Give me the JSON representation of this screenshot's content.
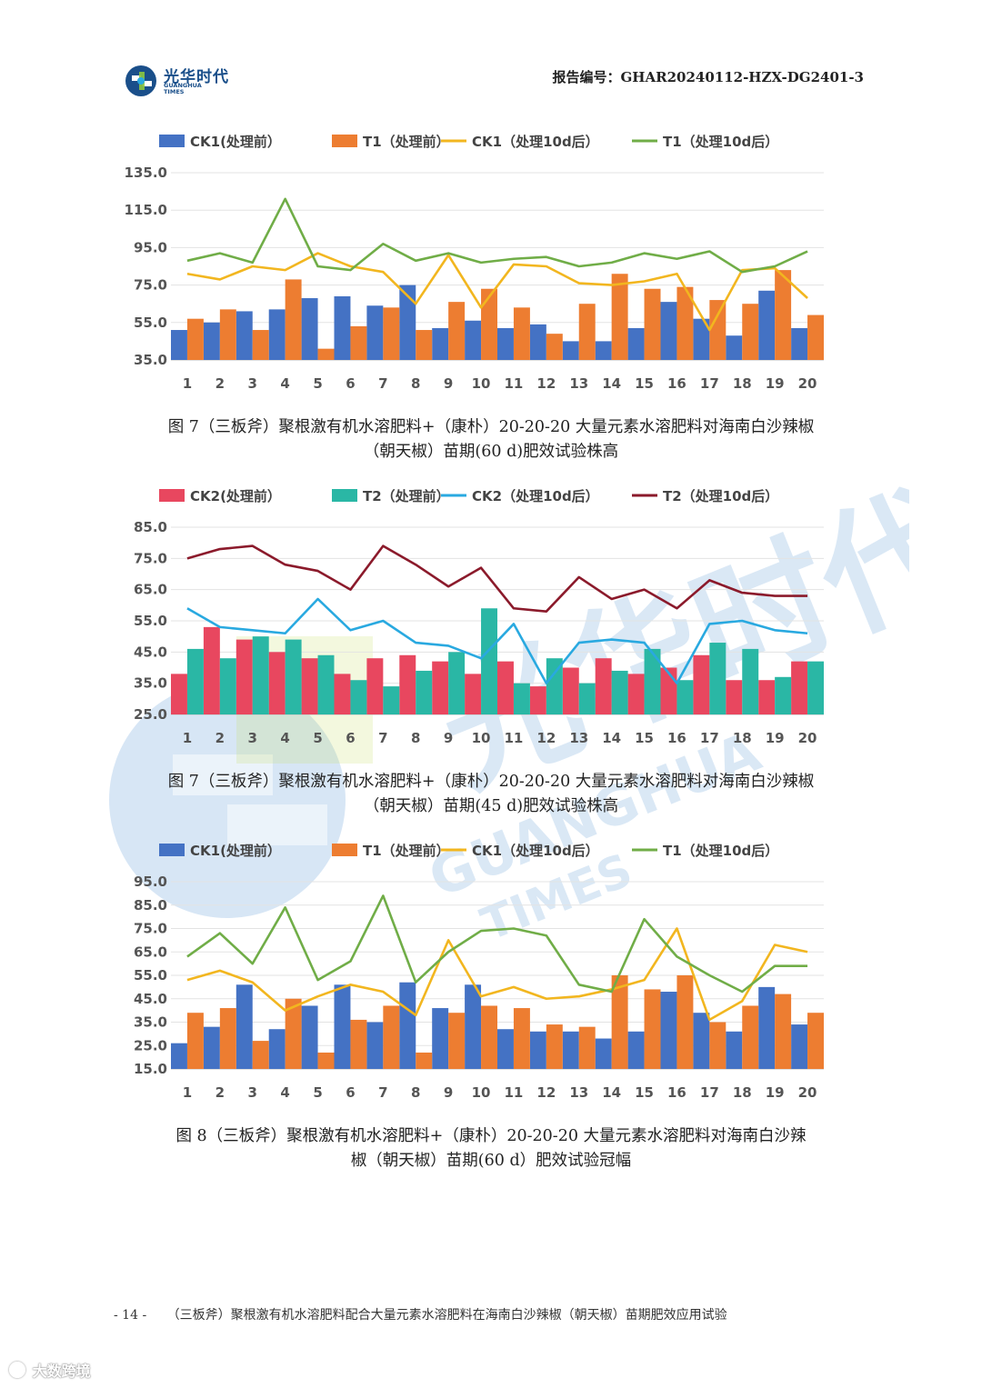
{
  "header": {
    "logo_cn": "光华时代",
    "logo_en_1": "GUANGHUA",
    "logo_en_2": "TIMES",
    "report_no": "报告编号：GHAR20240112-HZX-DG2401-3"
  },
  "watermark": {
    "text_cn": "光华时代",
    "text_en_1": "GUANGHUA",
    "text_en_2": "TIMES"
  },
  "captions": {
    "c1_line1": "图 7（三板斧）聚根激有机水溶肥料+（康朴）20-20-20 大量元素水溶肥料对海南白沙辣椒",
    "c1_line2": "（朝天椒）苗期(60 d)肥效试验株高",
    "c2_line1": "图 7（三板斧）聚根激有机水溶肥料+（康朴）20-20-20 大量元素水溶肥料对海南白沙辣椒",
    "c2_line2": "（朝天椒）苗期(45 d)肥效试验株高",
    "c3_line1": "图 8（三板斧）聚根激有机水溶肥料+（康朴）20-20-20 大量元素水溶肥料对海南白沙辣",
    "c3_line2": "椒（朝天椒）苗期(60 d）肥效试验冠幅"
  },
  "footer": {
    "page": "- 14 -",
    "title": "（三板斧）聚根激有机水溶肥料配合大量元素水溶肥料在海南白沙辣椒（朝天椒）苗期肥效应用试验"
  },
  "corner_brand": "大数跨境",
  "chart_data": [
    {
      "type": "bar",
      "categories": [
        "1",
        "2",
        "3",
        "4",
        "5",
        "6",
        "7",
        "8",
        "9",
        "10",
        "11",
        "12",
        "13",
        "14",
        "15",
        "16",
        "17",
        "18",
        "19",
        "20"
      ],
      "ylim": [
        35,
        135
      ],
      "yticks": [
        "35.0",
        "55.0",
        "75.0",
        "95.0",
        "115.0",
        "135.0"
      ],
      "grid": true,
      "legend_position": "top",
      "series": [
        {
          "name": "CK1(处理前）",
          "kind": "bar",
          "color": "#4472c4",
          "values": [
            51,
            55,
            61,
            62,
            68,
            69,
            64,
            75,
            52,
            56,
            52,
            54,
            45,
            45,
            52,
            66,
            57,
            48,
            72,
            52
          ]
        },
        {
          "name": "T1（处理前）",
          "kind": "bar",
          "color": "#ed7d31",
          "values": [
            57,
            62,
            51,
            78,
            41,
            53,
            63,
            51,
            66,
            73,
            63,
            49,
            65,
            81,
            73,
            74,
            67,
            65,
            83,
            59
          ]
        },
        {
          "name": "CK1（处理10d后）",
          "kind": "line",
          "color": "#f2b61f",
          "values": [
            81,
            78,
            85,
            83,
            92,
            85,
            82,
            65,
            91,
            63,
            86,
            85,
            76,
            75,
            77,
            81,
            51,
            83,
            84,
            68
          ]
        },
        {
          "name": "T1（处理10d后）",
          "kind": "line",
          "color": "#70ad47",
          "values": [
            88,
            92,
            87,
            121,
            85,
            83,
            97,
            88,
            92,
            87,
            89,
            90,
            85,
            87,
            92,
            89,
            93,
            82,
            85,
            93
          ]
        }
      ]
    },
    {
      "type": "bar",
      "categories": [
        "1",
        "2",
        "3",
        "4",
        "5",
        "6",
        "7",
        "8",
        "9",
        "10",
        "11",
        "12",
        "13",
        "14",
        "15",
        "16",
        "17",
        "18",
        "19",
        "20"
      ],
      "ylim": [
        25,
        85
      ],
      "yticks": [
        "25.0",
        "35.0",
        "45.0",
        "55.0",
        "65.0",
        "75.0",
        "85.0"
      ],
      "grid": true,
      "legend_position": "top",
      "series": [
        {
          "name": "CK2(处理前）",
          "kind": "bar",
          "color": "#e8475f",
          "values": [
            38,
            53,
            49,
            45,
            43,
            38,
            43,
            44,
            42,
            38,
            42,
            34,
            40,
            43,
            38,
            40,
            44,
            36,
            36,
            42
          ]
        },
        {
          "name": "T2（处理前）",
          "kind": "bar",
          "color": "#2ab7a5",
          "values": [
            46,
            43,
            50,
            49,
            44,
            36,
            34,
            39,
            45,
            59,
            35,
            43,
            35,
            39,
            46,
            36,
            48,
            46,
            37,
            42
          ]
        },
        {
          "name": "CK2（处理10d后）",
          "kind": "line",
          "color": "#29a9e0",
          "values": [
            59,
            53,
            52,
            51,
            62,
            52,
            55,
            48,
            47,
            43,
            54,
            35,
            48,
            49,
            48,
            35,
            54,
            55,
            52,
            51
          ]
        },
        {
          "name": "T2（处理10d后）",
          "kind": "line",
          "color": "#8b1a2b",
          "values": [
            75,
            78,
            79,
            73,
            71,
            65,
            79,
            73,
            66,
            72,
            59,
            58,
            69,
            62,
            65,
            59,
            68,
            64,
            63,
            63
          ]
        }
      ]
    },
    {
      "type": "bar",
      "categories": [
        "1",
        "2",
        "3",
        "4",
        "5",
        "6",
        "7",
        "8",
        "9",
        "10",
        "11",
        "12",
        "13",
        "14",
        "15",
        "16",
        "17",
        "18",
        "19",
        "20"
      ],
      "ylim": [
        15,
        95
      ],
      "yticks": [
        "15.0",
        "25.0",
        "35.0",
        "45.0",
        "55.0",
        "65.0",
        "75.0",
        "85.0",
        "95.0"
      ],
      "grid": true,
      "legend_position": "top",
      "series": [
        {
          "name": "CK1(处理前）",
          "kind": "bar",
          "color": "#4472c4",
          "values": [
            26,
            33,
            51,
            32,
            42,
            51,
            35,
            52,
            41,
            51,
            32,
            31,
            31,
            28,
            31,
            48,
            39,
            31,
            50,
            34
          ]
        },
        {
          "name": "T1（处理前）",
          "kind": "bar",
          "color": "#ed7d31",
          "values": [
            39,
            41,
            27,
            45,
            22,
            36,
            42,
            22,
            39,
            42,
            41,
            34,
            33,
            55,
            49,
            55,
            35,
            42,
            47,
            39
          ]
        },
        {
          "name": "CK1（处理10d后）",
          "kind": "line",
          "color": "#f2b61f",
          "values": [
            53,
            57,
            52,
            40,
            46,
            51,
            48,
            38,
            70,
            46,
            50,
            45,
            46,
            49,
            53,
            75,
            36,
            44,
            68,
            65
          ]
        },
        {
          "name": "T1（处理10d后）",
          "kind": "line",
          "color": "#70ad47",
          "values": [
            63,
            73,
            60,
            84,
            53,
            61,
            89,
            52,
            65,
            74,
            75,
            72,
            51,
            48,
            79,
            63,
            55,
            48,
            59,
            59
          ]
        }
      ]
    }
  ]
}
